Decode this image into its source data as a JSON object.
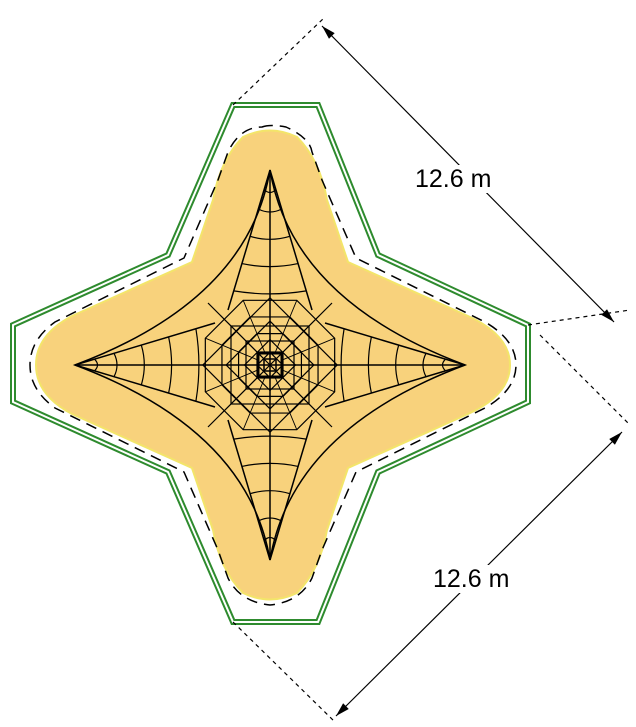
{
  "colors": {
    "background": "#ffffff",
    "footprint_fill": "#f8d27c",
    "outer_boundary": "#2e8b2e",
    "line": "#000000"
  },
  "icons": {
    "structure": "four-point-star-frame-icon"
  },
  "dimensions": [
    {
      "label": "12.6 m"
    },
    {
      "label": "12.6 m"
    }
  ]
}
